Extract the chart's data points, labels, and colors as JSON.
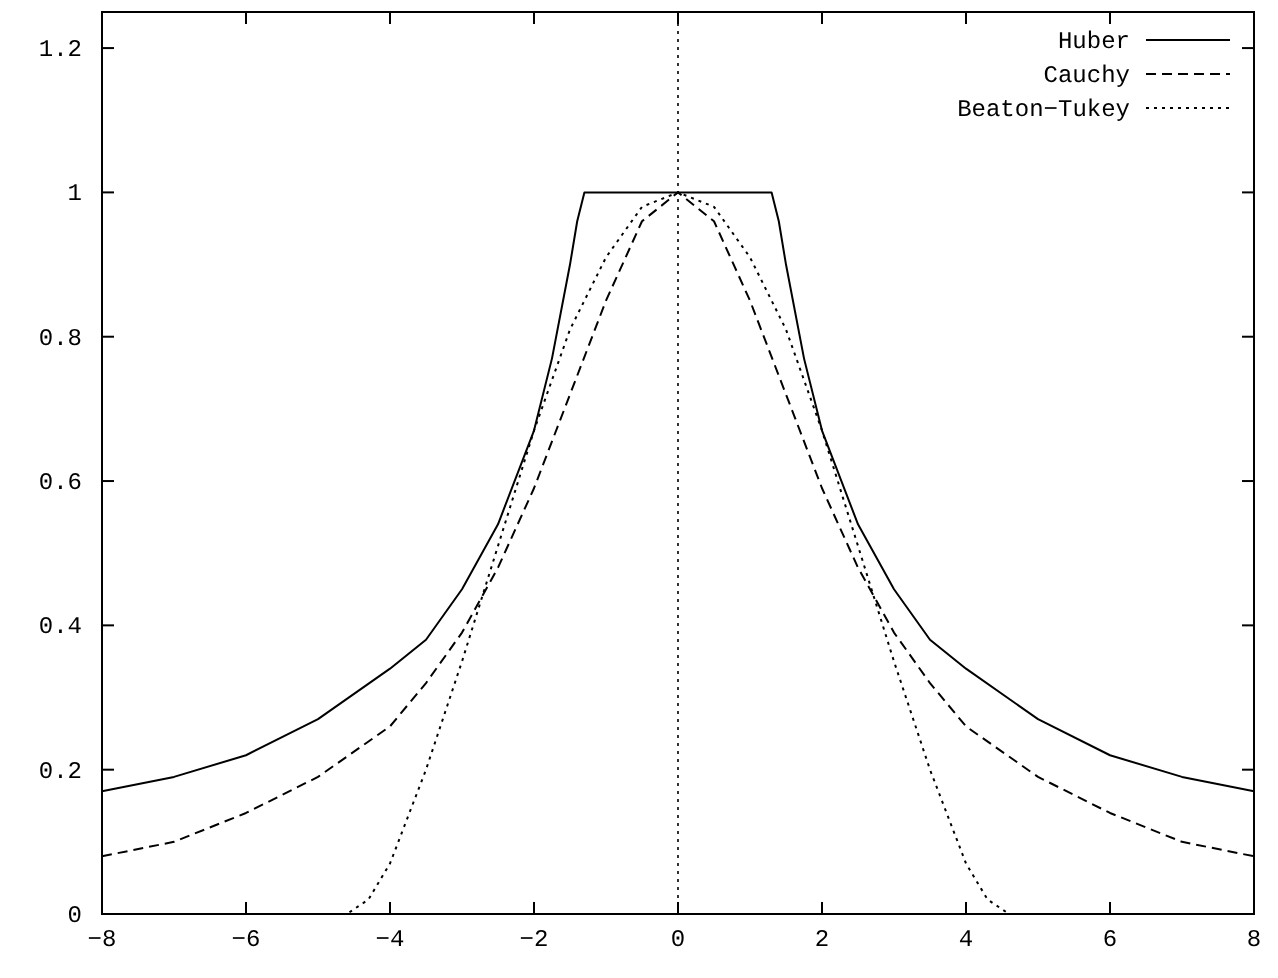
{
  "chart_data": {
    "type": "line",
    "xlim": [
      -8,
      8
    ],
    "ylim": [
      0,
      1.25
    ],
    "xticks": [
      {
        "value": -8,
        "label": "−8"
      },
      {
        "value": -6,
        "label": "−6"
      },
      {
        "value": -4,
        "label": "−4"
      },
      {
        "value": -2,
        "label": "−2"
      },
      0,
      2,
      4,
      6,
      8
    ],
    "yticks": [
      0,
      0.2,
      0.4,
      0.6,
      0.8,
      1,
      1.2
    ],
    "legend": "top right",
    "ref_lines": [
      {
        "axis": "x",
        "value": 0,
        "line_style": "dotted",
        "color": "#000000"
      }
    ],
    "series": [
      {
        "name": "Huber",
        "color": "#000000",
        "line_style": "solid",
        "x": [
          -8,
          -7,
          -6,
          -5,
          -4,
          -3.5,
          -3,
          -2.5,
          -2,
          -1.75,
          -1.5,
          -1.4,
          -1.3,
          0,
          1.3,
          1.4,
          1.5,
          1.75,
          2,
          2.5,
          3,
          3.5,
          4,
          5,
          6,
          7,
          8
        ],
        "values": [
          0.17,
          0.19,
          0.22,
          0.27,
          0.34,
          0.38,
          0.45,
          0.54,
          0.67,
          0.77,
          0.9,
          0.96,
          1,
          1,
          1,
          0.96,
          0.9,
          0.77,
          0.67,
          0.54,
          0.45,
          0.38,
          0.34,
          0.27,
          0.22,
          0.19,
          0.17
        ]
      },
      {
        "name": "Cauchy",
        "color": "#000000",
        "line_style": "dashed",
        "x": [
          -8,
          -7,
          -6,
          -5,
          -4,
          -3.5,
          -3,
          -2.5,
          -2,
          -1.5,
          -1,
          -0.5,
          0,
          0.5,
          1,
          1.5,
          2,
          2.5,
          3,
          3.5,
          4,
          5,
          6,
          7,
          8
        ],
        "values": [
          0.08,
          0.1,
          0.14,
          0.19,
          0.26,
          0.32,
          0.39,
          0.48,
          0.59,
          0.72,
          0.85,
          0.96,
          1,
          0.96,
          0.85,
          0.72,
          0.59,
          0.48,
          0.39,
          0.32,
          0.26,
          0.19,
          0.14,
          0.1,
          0.08
        ]
      },
      {
        "name": "Beaton−Tukey",
        "color": "#000000",
        "line_style": "dotted",
        "x": [
          -8,
          -4.6,
          -4.3,
          -4,
          -3.5,
          -3,
          -2.5,
          -2,
          -1.5,
          -1,
          -0.5,
          0,
          0.5,
          1,
          1.5,
          2,
          2.5,
          3,
          3.5,
          4,
          4.3,
          4.6,
          8
        ],
        "values": [
          0,
          0,
          0.02,
          0.07,
          0.2,
          0.35,
          0.51,
          0.67,
          0.81,
          0.91,
          0.98,
          1,
          0.98,
          0.91,
          0.81,
          0.67,
          0.51,
          0.35,
          0.2,
          0.07,
          0.02,
          0,
          0
        ]
      }
    ]
  }
}
